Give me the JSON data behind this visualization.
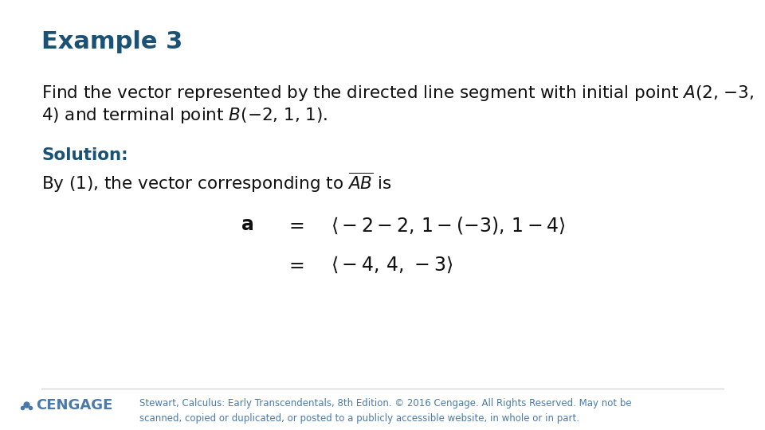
{
  "title": "Example 3",
  "title_color": "#1a5276",
  "title_fontsize": 22,
  "bg_color": "#ffffff",
  "body_color": "#111111",
  "body_fontsize": 15.5,
  "solution_color": "#1a5276",
  "solution_fontsize": 15.5,
  "eq_fontsize": 17,
  "footer_text": "Stewart, Calculus: Early Transcendentals, 8th Edition. © 2016 Cengage. All Rights Reserved. May not be\nscanned, copied or duplicated, or posted to a publicly accessible website, in whole or in part.",
  "footer_color": "#4a7aaa",
  "footer_fontsize": 8.5,
  "cengage_color": "#4a7aaa",
  "cengage_fontsize": 13,
  "line1": "Find the vector represented by the directed line segment with initial point $A$(2, −3,",
  "line2": "4) and terminal point $B$(−2, 1, 1).",
  "solution_label": "Solution:",
  "by_line": "By (1), the vector corresponding to $\\overline{AB}$ is",
  "eq1_a": "$\\mathbf{a}$",
  "eq1_eq": "$=$",
  "eq1_rhs": "$\\langle -2-2,\\, 1-(-3),\\, 1-4 \\rangle$",
  "eq2_eq": "$=$",
  "eq2_rhs": "$\\langle -4,\\, 4,\\, -3 \\rangle$"
}
